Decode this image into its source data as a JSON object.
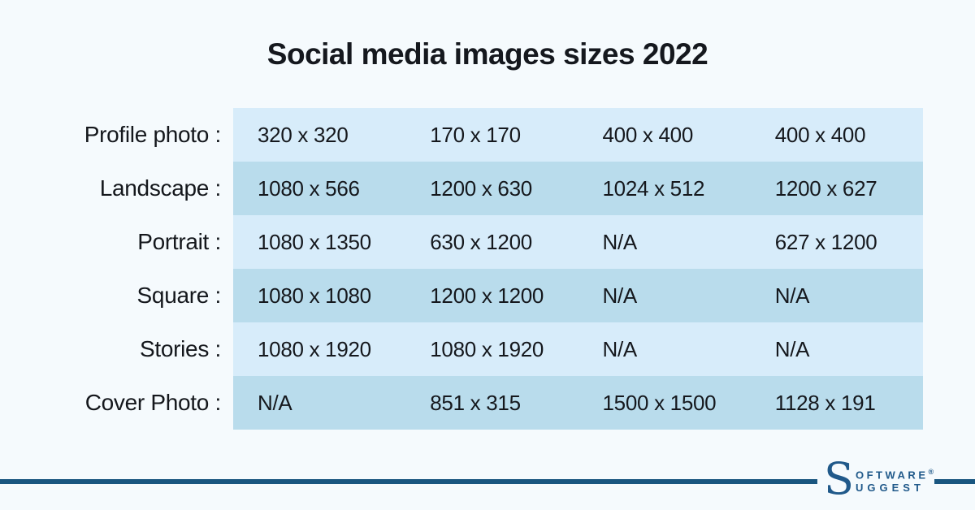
{
  "page": {
    "title": "Social media images sizes 2022"
  },
  "chart_data": {
    "type": "table",
    "title": "Social media images sizes 2022",
    "row_labels": [
      "Profile photo",
      "Landscape",
      "Portrait",
      "Square",
      "Stories",
      "Cover Photo"
    ],
    "rows": [
      [
        "320 x 320",
        "170 x 170",
        "400 x 400",
        "400 x 400"
      ],
      [
        "1080 x 566",
        "1200 x 630",
        "1024 x 512",
        "1200 x 627"
      ],
      [
        "1080 x 1350",
        "630 x 1200",
        "N/A",
        "627 x 1200"
      ],
      [
        "1080 x 1080",
        "1200 x 1200",
        "N/A",
        "N/A"
      ],
      [
        "1080 x 1920",
        "1080 x 1920",
        "N/A",
        "N/A"
      ],
      [
        "N/A",
        "851 x 315",
        "1500 x 1500",
        "1128 x 191"
      ]
    ],
    "layout_hints": {
      "grid": "alternating row bands, no column headers, no cell borders",
      "row_band_colors": [
        "#d7ecfa",
        "#b9dcec"
      ]
    }
  },
  "table": {
    "rows": [
      {
        "label": "Profile photo :",
        "values": [
          "320 x 320",
          "170 x 170",
          "400 x 400",
          "400 x 400"
        ]
      },
      {
        "label": "Landscape :",
        "values": [
          "1080 x 566",
          "1200 x 630",
          "1024 x 512",
          "1200 x 627"
        ]
      },
      {
        "label": "Portrait :",
        "values": [
          "1080 x 1350",
          "630 x 1200",
          "N/A",
          "627 x 1200"
        ]
      },
      {
        "label": "Square :",
        "values": [
          "1080 x 1080",
          "1200 x 1200",
          "N/A",
          "N/A"
        ]
      },
      {
        "label": "Stories :",
        "values": [
          "1080 x 1920",
          "1080 x 1920",
          "N/A",
          "N/A"
        ]
      },
      {
        "label": "Cover Photo :",
        "values": [
          "N/A",
          "851 x 315",
          "1500 x 1500",
          "1128 x 191"
        ]
      }
    ]
  },
  "branding": {
    "logo_initial": "S",
    "logo_line1": "OFTWARE",
    "logo_registered": "®",
    "logo_line2": "UGGEST"
  },
  "colors": {
    "background": "#f5fafd",
    "row_light": "#d7ecfa",
    "row_dark": "#b9dcec",
    "text": "#15181d",
    "rule_blue": "#195680",
    "logo_blue": "#20598a"
  }
}
